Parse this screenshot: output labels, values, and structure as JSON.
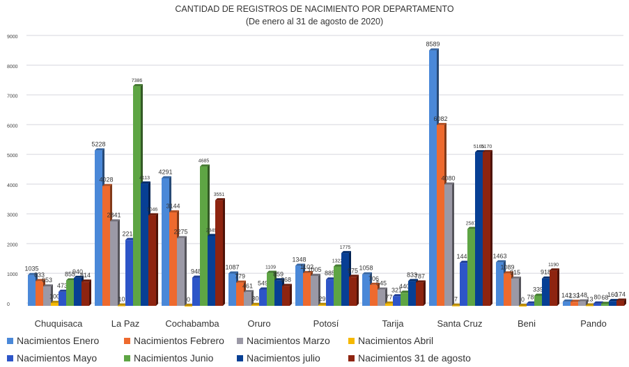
{
  "chart_data": {
    "type": "bar",
    "title": "CANTIDAD DE REGISTROS DE NACIMIENTO POR DEPARTAMENTO",
    "subtitle": "(De enero al  31  de agosto de 2020)",
    "categories": [
      "Chuquisaca",
      "La Paz",
      "Cochabamba",
      "Oruro",
      "Potosí",
      "Tarija",
      "Santa Cruz",
      "Beni",
      "Pando"
    ],
    "ylim": [
      0,
      9000
    ],
    "yticks": [
      0,
      1000,
      2000,
      3000,
      4000,
      5000,
      6000,
      7000,
      8000,
      9000
    ],
    "grid": true,
    "legend_position": "bottom",
    "series": [
      {
        "name": "Nacimientos Enero",
        "color": "#4a88d8",
        "values": [
          1035,
          5228,
          4291,
          1087,
          1348,
          1058,
          8589,
          1463,
          142
        ]
      },
      {
        "name": "Nacimientos Febrero",
        "color": "#ee6a2e",
        "values": [
          833,
          4028,
          3144,
          779,
          1102,
          706,
          6082,
          1089,
          133
        ]
      },
      {
        "name": "Nacimientos Marzo",
        "color": "#9b99a6",
        "values": [
          653,
          2841,
          2275,
          461,
          1005,
          545,
          4080,
          915,
          148
        ]
      },
      {
        "name": "Nacimientos Abril",
        "color": "#f5b800",
        "values": [
          100,
          10,
          0,
          30,
          29,
          77,
          7,
          0,
          13
        ]
      },
      {
        "name": "Nacimientos Mayo",
        "color": "#2d55c8",
        "values": [
          473,
          2214,
          948,
          549,
          885,
          321,
          1447,
          78,
          80
        ]
      },
      {
        "name": "Nacimientos Junio",
        "color": "#5ea544",
        "values": [
          855,
          7386,
          4685,
          1109,
          1322,
          440,
          2587,
          339,
          68
        ]
      },
      {
        "name": "Nacimientos julio",
        "color": "#073f94",
        "values": [
          940,
          4113,
          2349,
          859,
          1775,
          833,
          5165,
          918,
          160
        ]
      },
      {
        "name": "Nacimientos 31 de agosto",
        "color": "#8e2410",
        "values": [
          814,
          3046,
          3551,
          668,
          975,
          787,
          5170,
          1190,
          174
        ]
      }
    ]
  }
}
